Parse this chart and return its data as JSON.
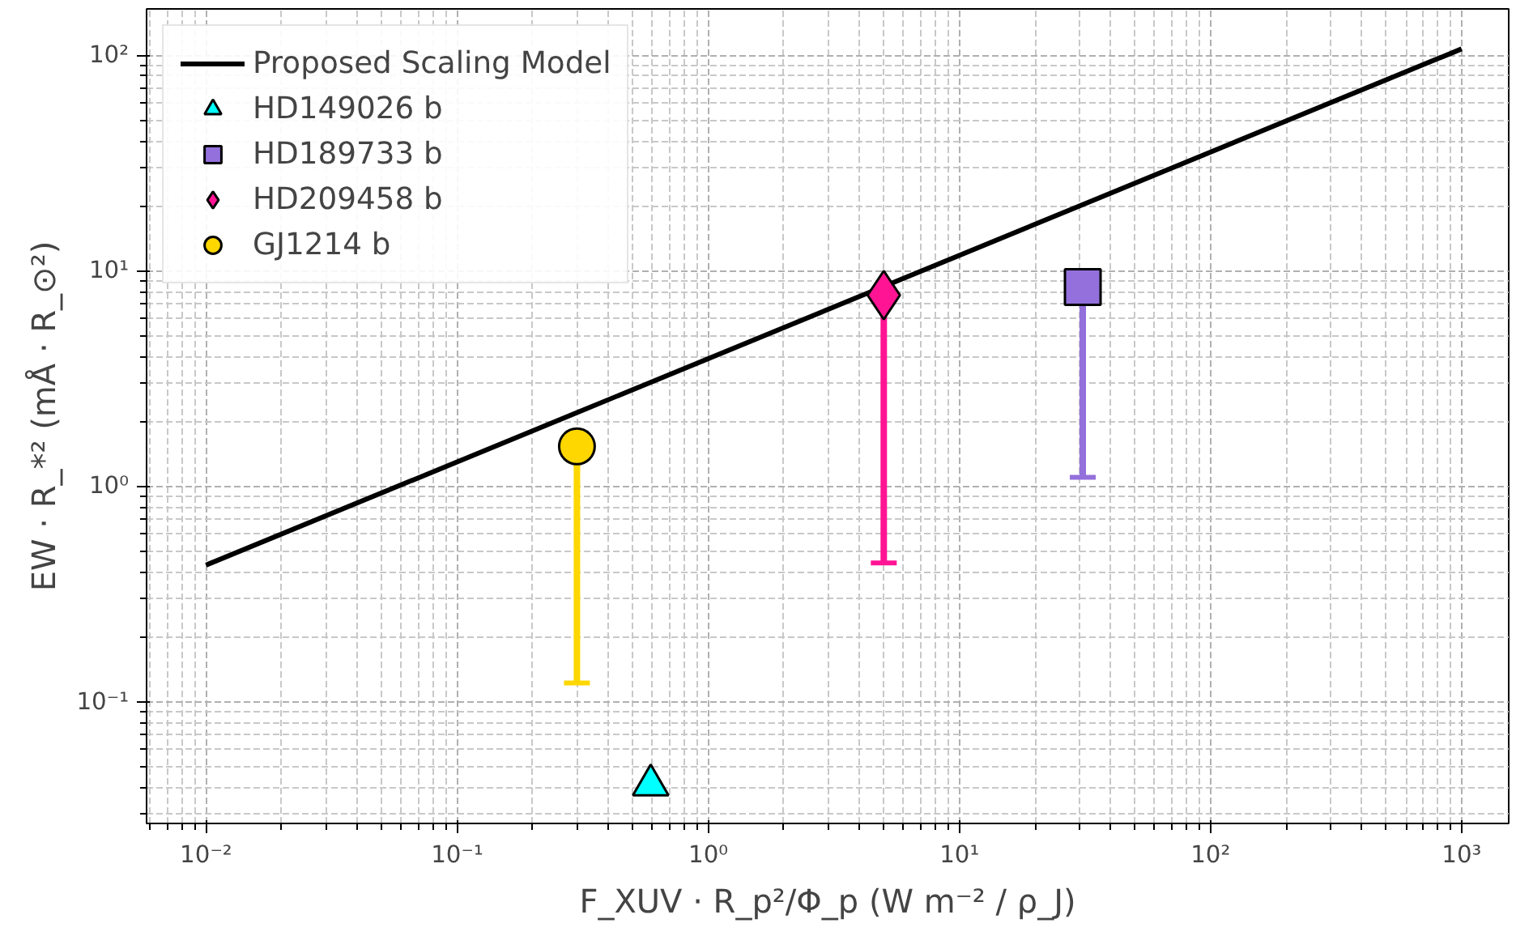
{
  "chart_data": {
    "type": "scatter",
    "xlabel": "F_XUV · R_p²/Φ_p (W m⁻² / ρ_J)",
    "ylabel": "EW · R_*² (mÅ · R_⊙²)",
    "log": "xy",
    "grid": true,
    "legend": "top left",
    "xlim": [
      0.0058,
      1540
    ],
    "ylim": [
      0.0272,
      164
    ],
    "xticks": [
      {
        "value": 0.01,
        "label": "10⁻²"
      },
      {
        "value": 0.1,
        "label": "10⁻¹"
      },
      {
        "value": 1,
        "label": "10⁰"
      },
      {
        "value": 10,
        "label": "10¹"
      },
      {
        "value": 100,
        "label": "10²"
      },
      {
        "value": 1000,
        "label": "10³"
      }
    ],
    "yticks": [
      {
        "value": 0.1,
        "label": "10⁻¹"
      },
      {
        "value": 1,
        "label": "10⁰"
      },
      {
        "value": 10,
        "label": "10¹"
      },
      {
        "value": 100,
        "label": "10²"
      }
    ],
    "series": [
      {
        "name": "Proposed Scaling Model",
        "type": "line",
        "color": "#000000",
        "x": [
          0.01,
          1000
        ],
        "values": [
          0.43,
          107
        ],
        "line_style": "solid"
      },
      {
        "name": "HD149026 b",
        "color": "#00ffff",
        "x": [
          0.59
        ],
        "values": [
          0.041
        ],
        "marker": "triangle"
      },
      {
        "name": "HD189733 b",
        "color": "#9370db",
        "x": [
          31
        ],
        "values": [
          8.4
        ],
        "marker": "square",
        "errors": [
          [
            1.1,
            8.4
          ]
        ]
      },
      {
        "name": "HD209458 b",
        "color": "#ff1493",
        "x": [
          5.0
        ],
        "values": [
          7.7
        ],
        "marker": "diamond",
        "errors": [
          [
            0.44,
            7.7
          ]
        ]
      },
      {
        "name": "GJ1214 b",
        "color": "#ffd700",
        "x": [
          0.3
        ],
        "values": [
          1.53
        ],
        "marker": "circle",
        "errors": [
          [
            0.122,
            1.53
          ]
        ]
      }
    ]
  }
}
